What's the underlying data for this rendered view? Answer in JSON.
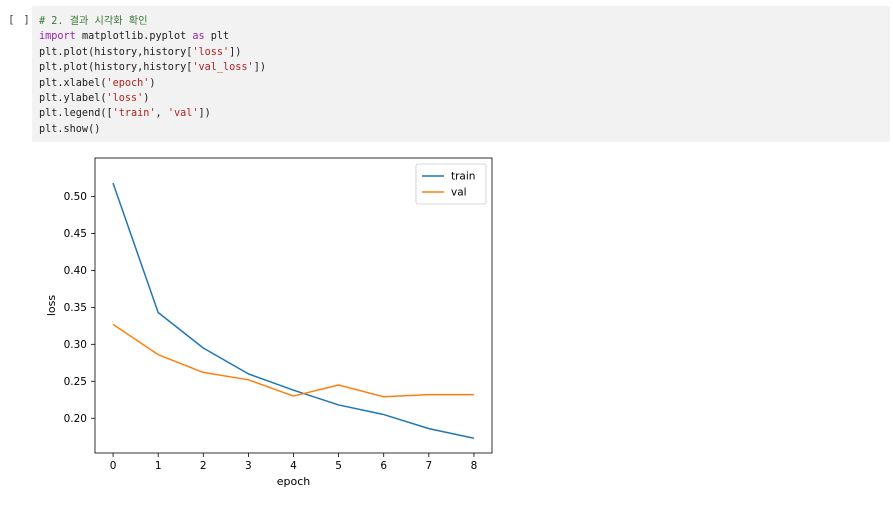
{
  "cell": {
    "run_indicator": "[ ]",
    "code_lines": [
      [
        {
          "t": "# 2. 결과 시각화 확인",
          "k": "comment"
        }
      ],
      [
        {
          "t": "import",
          "k": "keyword"
        },
        {
          "t": " matplotlib.pyplot ",
          "k": "plain"
        },
        {
          "t": "as",
          "k": "keyword"
        },
        {
          "t": " plt",
          "k": "plain"
        }
      ],
      [
        {
          "t": "plt.plot(history,history[",
          "k": "plain"
        },
        {
          "t": "'loss'",
          "k": "string"
        },
        {
          "t": "])",
          "k": "plain"
        }
      ],
      [
        {
          "t": "plt.plot(history,history[",
          "k": "plain"
        },
        {
          "t": "'val_loss'",
          "k": "string"
        },
        {
          "t": "])",
          "k": "plain"
        }
      ],
      [
        {
          "t": "plt.xlabel(",
          "k": "plain"
        },
        {
          "t": "'epoch'",
          "k": "string"
        },
        {
          "t": ")",
          "k": "plain"
        }
      ],
      [
        {
          "t": "plt.ylabel(",
          "k": "plain"
        },
        {
          "t": "'loss'",
          "k": "string"
        },
        {
          "t": ")",
          "k": "plain"
        }
      ],
      [
        {
          "t": "plt.legend([",
          "k": "plain"
        },
        {
          "t": "'train'",
          "k": "string"
        },
        {
          "t": ", ",
          "k": "plain"
        },
        {
          "t": "'val'",
          "k": "string"
        },
        {
          "t": "])",
          "k": "plain"
        }
      ],
      [
        {
          "t": "plt.show()",
          "k": "plain"
        }
      ]
    ]
  },
  "chart_data": {
    "type": "line",
    "title": "",
    "xlabel": "epoch",
    "ylabel": "loss",
    "x": [
      0,
      1,
      2,
      3,
      4,
      5,
      6,
      7,
      8
    ],
    "xlim": [
      -0.4,
      8.4
    ],
    "ylim": [
      0.153,
      0.552
    ],
    "xticks": [
      "0",
      "1",
      "2",
      "3",
      "4",
      "5",
      "6",
      "7",
      "8"
    ],
    "yticks": [
      0.2,
      0.25,
      0.3,
      0.35,
      0.4,
      0.45,
      0.5
    ],
    "ytick_labels": [
      "0.20",
      "0.25",
      "0.30",
      "0.35",
      "0.40",
      "0.45",
      "0.50"
    ],
    "grid": false,
    "legend_position": "top-right",
    "series": [
      {
        "name": "train",
        "color": "#1f77b4",
        "values": [
          0.518,
          0.343,
          0.295,
          0.26,
          0.238,
          0.218,
          0.205,
          0.186,
          0.173
        ]
      },
      {
        "name": "val",
        "color": "#ff7f0e",
        "values": [
          0.327,
          0.286,
          0.262,
          0.252,
          0.23,
          0.245,
          0.229,
          0.232,
          0.232
        ]
      }
    ]
  }
}
